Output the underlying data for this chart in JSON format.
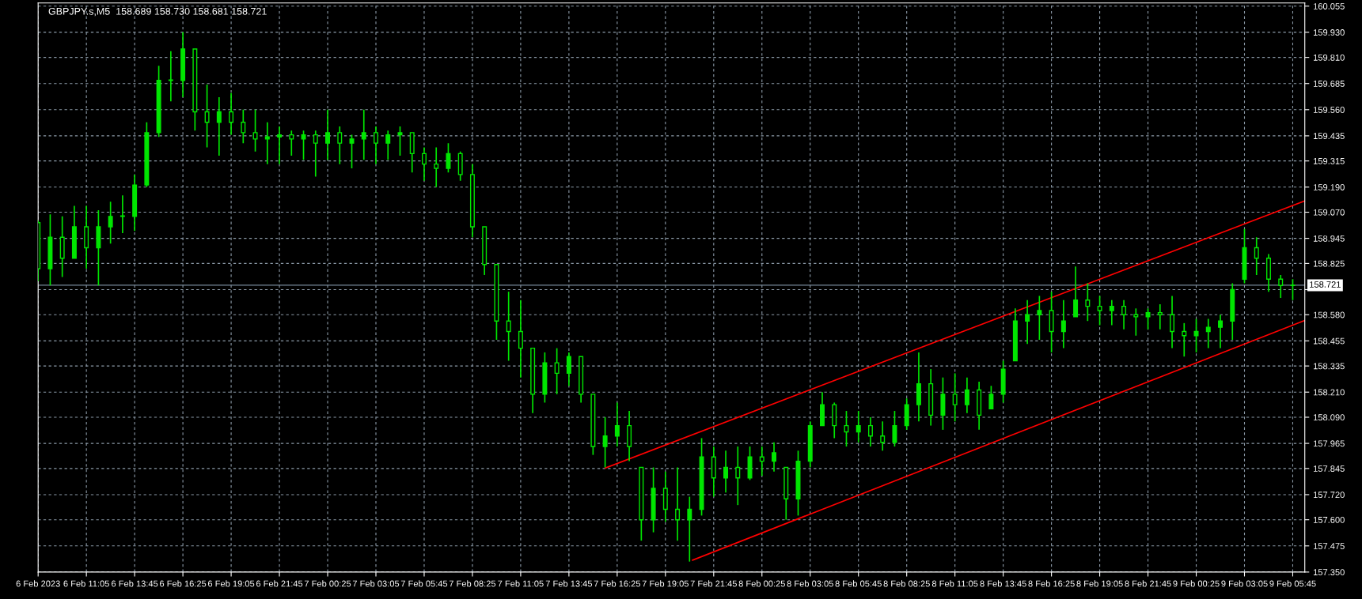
{
  "chart_data": {
    "type": "candlestick",
    "title": "GBPJPY.s,M5  158.689 158.730 158.681 158.721",
    "color": "#00e600",
    "x": [
      "2023-02-06T08:25",
      "2023-02-06T09:05",
      "2023-02-06T09:45",
      "2023-02-06T10:25",
      "2023-02-06T11:05",
      "2023-02-06T11:45",
      "2023-02-06T12:25",
      "2023-02-06T13:05",
      "2023-02-06T13:45",
      "2023-02-06T14:25",
      "2023-02-06T15:05",
      "2023-02-06T15:45",
      "2023-02-06T16:25",
      "2023-02-06T17:05",
      "2023-02-06T17:45",
      "2023-02-06T18:25",
      "2023-02-06T19:05",
      "2023-02-06T19:45",
      "2023-02-06T20:25",
      "2023-02-06T21:05",
      "2023-02-06T21:45",
      "2023-02-06T22:25",
      "2023-02-06T23:05",
      "2023-02-06T23:45",
      "2023-02-07T00:25",
      "2023-02-07T01:05",
      "2023-02-07T01:45",
      "2023-02-07T02:25",
      "2023-02-07T03:05",
      "2023-02-07T03:45",
      "2023-02-07T04:25",
      "2023-02-07T05:05",
      "2023-02-07T05:45",
      "2023-02-07T06:25",
      "2023-02-07T07:05",
      "2023-02-07T07:45",
      "2023-02-07T08:25",
      "2023-02-07T09:05",
      "2023-02-07T09:45",
      "2023-02-07T10:25",
      "2023-02-07T11:05",
      "2023-02-07T11:45",
      "2023-02-07T12:25",
      "2023-02-07T13:05",
      "2023-02-07T13:45",
      "2023-02-07T14:25",
      "2023-02-07T15:05",
      "2023-02-07T15:45",
      "2023-02-07T16:25",
      "2023-02-07T17:05",
      "2023-02-07T17:45",
      "2023-02-07T18:25",
      "2023-02-07T19:05",
      "2023-02-07T19:45",
      "2023-02-07T20:25",
      "2023-02-07T21:05",
      "2023-02-07T21:45",
      "2023-02-07T22:25",
      "2023-02-07T23:05",
      "2023-02-07T23:45",
      "2023-02-08T00:25",
      "2023-02-08T01:05",
      "2023-02-08T01:45",
      "2023-02-08T02:25",
      "2023-02-08T03:05",
      "2023-02-08T03:45",
      "2023-02-08T04:25",
      "2023-02-08T05:05",
      "2023-02-08T05:45",
      "2023-02-08T06:25",
      "2023-02-08T07:05",
      "2023-02-08T07:45",
      "2023-02-08T08:25",
      "2023-02-08T09:05",
      "2023-02-08T09:45",
      "2023-02-08T10:25",
      "2023-02-08T11:05",
      "2023-02-08T11:45",
      "2023-02-08T12:25",
      "2023-02-08T13:05",
      "2023-02-08T13:45",
      "2023-02-08T14:25",
      "2023-02-08T15:05",
      "2023-02-08T15:45",
      "2023-02-08T16:25",
      "2023-02-08T17:05",
      "2023-02-08T17:45",
      "2023-02-08T18:25",
      "2023-02-08T19:05",
      "2023-02-08T19:45",
      "2023-02-08T20:25",
      "2023-02-08T21:05",
      "2023-02-08T21:45",
      "2023-02-08T22:25",
      "2023-02-08T23:05",
      "2023-02-08T23:45",
      "2023-02-09T00:25",
      "2023-02-09T01:05",
      "2023-02-09T01:45",
      "2023-02-09T02:25",
      "2023-02-09T03:05",
      "2023-02-09T03:45",
      "2023-02-09T04:25",
      "2023-02-09T05:05",
      "2023-02-09T05:45"
    ],
    "ohlc": [
      [
        159.02,
        159.03,
        158.74,
        158.8
      ],
      [
        158.8,
        159.06,
        158.72,
        158.95
      ],
      [
        158.95,
        159.05,
        158.76,
        158.85
      ],
      [
        158.85,
        159.1,
        158.85,
        159.0
      ],
      [
        159.0,
        159.1,
        158.8,
        158.9
      ],
      [
        158.9,
        159.08,
        158.72,
        159.0
      ],
      [
        159.0,
        159.12,
        158.92,
        159.05
      ],
      [
        159.05,
        159.15,
        158.97,
        159.05
      ],
      [
        159.05,
        159.25,
        158.98,
        159.2
      ],
      [
        159.2,
        159.5,
        159.19,
        159.45
      ],
      [
        159.45,
        159.77,
        159.43,
        159.7
      ],
      [
        159.7,
        159.84,
        159.6,
        159.7
      ],
      [
        159.7,
        159.93,
        159.62,
        159.85
      ],
      [
        159.85,
        159.85,
        159.46,
        159.55
      ],
      [
        159.55,
        159.68,
        159.38,
        159.5
      ],
      [
        159.5,
        159.62,
        159.34,
        159.55
      ],
      [
        159.55,
        159.64,
        159.44,
        159.5
      ],
      [
        159.5,
        159.56,
        159.4,
        159.45
      ],
      [
        159.45,
        159.56,
        159.36,
        159.42
      ],
      [
        159.42,
        159.5,
        159.3,
        159.43
      ],
      [
        159.43,
        159.48,
        159.3,
        159.44
      ],
      [
        159.44,
        159.46,
        159.34,
        159.42
      ],
      [
        159.42,
        159.46,
        159.32,
        159.44
      ],
      [
        159.44,
        159.46,
        159.24,
        159.4
      ],
      [
        159.4,
        159.56,
        159.32,
        159.45
      ],
      [
        159.45,
        159.48,
        159.3,
        159.4
      ],
      [
        159.4,
        159.44,
        159.28,
        159.42
      ],
      [
        159.42,
        159.56,
        159.32,
        159.45
      ],
      [
        159.45,
        159.48,
        159.3,
        159.4
      ],
      [
        159.4,
        159.46,
        159.32,
        159.44
      ],
      [
        159.44,
        159.48,
        159.34,
        159.45
      ],
      [
        159.45,
        159.45,
        159.26,
        159.35
      ],
      [
        159.35,
        159.38,
        159.22,
        159.3
      ],
      [
        159.3,
        159.38,
        159.19,
        159.28
      ],
      [
        159.28,
        159.4,
        159.26,
        159.35
      ],
      [
        159.35,
        159.36,
        159.22,
        159.25
      ],
      [
        159.25,
        159.3,
        158.95,
        159.0
      ],
      [
        159.0,
        159.0,
        158.77,
        158.82
      ],
      [
        158.82,
        158.82,
        158.46,
        158.55
      ],
      [
        158.55,
        158.69,
        158.36,
        158.5
      ],
      [
        158.5,
        158.65,
        158.28,
        158.42
      ],
      [
        158.42,
        158.42,
        158.11,
        158.2
      ],
      [
        158.2,
        158.4,
        158.16,
        158.35
      ],
      [
        158.35,
        158.42,
        158.2,
        158.3
      ],
      [
        158.3,
        158.4,
        158.24,
        158.38
      ],
      [
        158.38,
        158.38,
        158.16,
        158.2
      ],
      [
        158.2,
        158.2,
        157.91,
        157.95
      ],
      [
        157.95,
        158.09,
        157.85,
        158.0
      ],
      [
        158.0,
        158.16,
        157.95,
        158.05
      ],
      [
        158.05,
        158.12,
        157.88,
        157.95
      ],
      [
        157.85,
        157.85,
        157.5,
        157.6
      ],
      [
        157.6,
        157.85,
        157.54,
        157.75
      ],
      [
        157.75,
        157.83,
        157.59,
        157.65
      ],
      [
        157.65,
        157.85,
        157.5,
        157.6
      ],
      [
        157.6,
        157.71,
        157.4,
        157.65
      ],
      [
        157.65,
        157.99,
        157.62,
        157.9
      ],
      [
        157.9,
        157.95,
        157.71,
        157.8
      ],
      [
        157.8,
        157.93,
        157.73,
        157.85
      ],
      [
        157.85,
        157.95,
        157.67,
        157.8
      ],
      [
        157.8,
        157.95,
        157.79,
        157.9
      ],
      [
        157.9,
        157.95,
        157.81,
        157.88
      ],
      [
        157.88,
        157.97,
        157.83,
        157.92
      ],
      [
        157.85,
        157.85,
        157.6,
        157.7
      ],
      [
        157.7,
        157.93,
        157.62,
        157.88
      ],
      [
        157.88,
        158.07,
        157.85,
        158.05
      ],
      [
        158.05,
        158.21,
        158.05,
        158.15
      ],
      [
        158.15,
        158.16,
        157.99,
        158.05
      ],
      [
        158.05,
        158.12,
        157.95,
        158.02
      ],
      [
        158.02,
        158.12,
        157.97,
        158.05
      ],
      [
        158.05,
        158.09,
        157.95,
        158.0
      ],
      [
        158.0,
        158.07,
        157.93,
        157.97
      ],
      [
        157.97,
        158.12,
        157.95,
        158.05
      ],
      [
        158.05,
        158.18,
        158.03,
        158.15
      ],
      [
        158.15,
        158.4,
        158.07,
        158.25
      ],
      [
        158.25,
        158.32,
        158.05,
        158.1
      ],
      [
        158.1,
        158.28,
        158.03,
        158.2
      ],
      [
        158.2,
        158.3,
        158.07,
        158.15
      ],
      [
        158.15,
        158.28,
        158.11,
        158.22
      ],
      [
        158.22,
        158.26,
        158.03,
        158.1
      ],
      [
        158.13,
        158.24,
        158.13,
        158.2
      ],
      [
        158.2,
        158.36,
        158.16,
        158.32
      ],
      [
        158.36,
        158.61,
        158.36,
        158.55
      ],
      [
        158.55,
        158.65,
        158.44,
        158.58
      ],
      [
        158.58,
        158.67,
        158.46,
        158.6
      ],
      [
        158.6,
        158.69,
        158.4,
        158.5
      ],
      [
        158.5,
        158.65,
        158.42,
        158.55
      ],
      [
        158.57,
        158.81,
        158.57,
        158.65
      ],
      [
        158.65,
        158.73,
        158.55,
        158.62
      ],
      [
        158.62,
        158.67,
        158.53,
        158.6
      ],
      [
        158.6,
        158.65,
        158.53,
        158.62
      ],
      [
        158.62,
        158.65,
        158.51,
        158.58
      ],
      [
        158.58,
        158.61,
        158.48,
        158.57
      ],
      [
        158.57,
        158.61,
        158.51,
        158.59
      ],
      [
        158.59,
        158.63,
        158.51,
        158.58
      ],
      [
        158.58,
        158.67,
        158.42,
        158.5
      ],
      [
        158.5,
        158.54,
        158.38,
        158.48
      ],
      [
        158.48,
        158.56,
        158.4,
        158.5
      ],
      [
        158.5,
        158.56,
        158.42,
        158.52
      ],
      [
        158.52,
        158.58,
        158.42,
        158.55
      ],
      [
        158.55,
        158.73,
        158.46,
        158.7
      ],
      [
        158.75,
        158.99,
        158.73,
        158.9
      ],
      [
        158.9,
        158.95,
        158.77,
        158.85
      ],
      [
        158.85,
        158.87,
        158.69,
        158.75
      ],
      [
        158.75,
        158.77,
        158.66,
        158.72
      ],
      [
        158.72,
        158.75,
        158.65,
        158.721
      ]
    ],
    "series": [
      {
        "type": "line",
        "color": "#ff0000",
        "x": [
          "2023-02-07T15:45",
          "2023-02-09T06:25"
        ],
        "values": [
          157.847,
          159.124
        ]
      },
      {
        "type": "line",
        "color": "#ff0000",
        "x": [
          "2023-02-07T20:35",
          "2023-02-09T06:25"
        ],
        "values": [
          157.407,
          158.553
        ]
      }
    ],
    "ref_lines": [
      {
        "axis": "y",
        "value": 158.721,
        "label": "158.721",
        "color": "#778899"
      }
    ],
    "xlim": [
      "2023-02-06T08:25",
      "2023-02-09T06:25"
    ],
    "xticks": [
      {
        "value": "2023-02-06T08:25",
        "label": "6 Feb 2023"
      },
      {
        "value": "2023-02-06T11:05",
        "label": "6 Feb 11:05"
      },
      {
        "value": "2023-02-06T13:45",
        "label": "6 Feb 13:45"
      },
      {
        "value": "2023-02-06T16:25",
        "label": "6 Feb 16:25"
      },
      {
        "value": "2023-02-06T19:05",
        "label": "6 Feb 19:05"
      },
      {
        "value": "2023-02-06T21:45",
        "label": "6 Feb 21:45"
      },
      {
        "value": "2023-02-07T00:25",
        "label": "7 Feb 00:25"
      },
      {
        "value": "2023-02-07T03:05",
        "label": "7 Feb 03:05"
      },
      {
        "value": "2023-02-07T05:45",
        "label": "7 Feb 05:45"
      },
      {
        "value": "2023-02-07T08:25",
        "label": "7 Feb 08:25"
      },
      {
        "value": "2023-02-07T11:05",
        "label": "7 Feb 11:05"
      },
      {
        "value": "2023-02-07T13:45",
        "label": "7 Feb 13:45"
      },
      {
        "value": "2023-02-07T16:25",
        "label": "7 Feb 16:25"
      },
      {
        "value": "2023-02-07T19:05",
        "label": "7 Feb 19:05"
      },
      {
        "value": "2023-02-07T21:45",
        "label": "7 Feb 21:45"
      },
      {
        "value": "2023-02-08T00:25",
        "label": "8 Feb 00:25"
      },
      {
        "value": "2023-02-08T03:05",
        "label": "8 Feb 03:05"
      },
      {
        "value": "2023-02-08T05:45",
        "label": "8 Feb 05:45"
      },
      {
        "value": "2023-02-08T08:25",
        "label": "8 Feb 08:25"
      },
      {
        "value": "2023-02-08T11:05",
        "label": "8 Feb 11:05"
      },
      {
        "value": "2023-02-08T13:45",
        "label": "8 Feb 13:45"
      },
      {
        "value": "2023-02-08T16:25",
        "label": "8 Feb 16:25"
      },
      {
        "value": "2023-02-08T19:05",
        "label": "8 Feb 19:05"
      },
      {
        "value": "2023-02-08T21:45",
        "label": "8 Feb 21:45"
      },
      {
        "value": "2023-02-09T00:25",
        "label": "9 Feb 00:25"
      },
      {
        "value": "2023-02-09T03:05",
        "label": "9 Feb 03:05"
      },
      {
        "value": "2023-02-09T05:45",
        "label": "9 Feb 05:45"
      }
    ],
    "ylim": [
      157.35,
      160.07
    ],
    "yticks": [
      {
        "value": 157.35,
        "label": "157.350"
      },
      157.475,
      {
        "value": 157.6,
        "label": "157.600"
      },
      {
        "value": 157.72,
        "label": "157.720"
      },
      157.845,
      157.965,
      {
        "value": 158.09,
        "label": "158.090"
      },
      {
        "value": 158.21,
        "label": "158.210"
      },
      158.335,
      158.455,
      {
        "value": 158.58,
        "label": "158.580"
      },
      {
        "value": 158.7,
        "label": null
      },
      158.825,
      158.945,
      {
        "value": 159.07,
        "label": "159.070"
      },
      {
        "value": 159.19,
        "label": "159.190"
      },
      159.315,
      159.435,
      {
        "value": 159.56,
        "label": "159.560"
      },
      159.685,
      {
        "value": 159.81,
        "label": "159.810"
      },
      {
        "value": 159.93,
        "label": "159.930"
      },
      160.055
    ],
    "grid": true
  }
}
